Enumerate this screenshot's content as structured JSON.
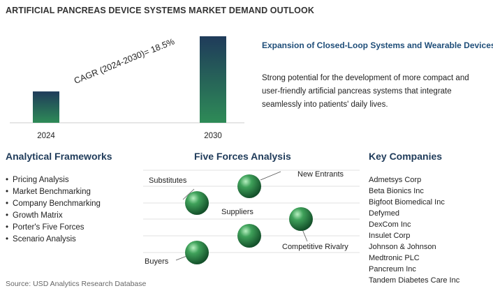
{
  "title": "ARTIFICIAL PANCREAS DEVICE SYSTEMS MARKET DEMAND OUTLOOK",
  "chart_data": {
    "type": "bar",
    "categories": [
      "2024",
      "2030"
    ],
    "values": [
      1,
      2.76
    ],
    "annotation": "CAGR (2024-2030)=  18.5%",
    "colors": {
      "bar_top": "#1f3b5a",
      "bar_bottom": "#2e8b57"
    }
  },
  "highlight": {
    "title": "Expansion of Closed-Loop Systems and Wearable Devices",
    "text": "Strong potential for the development of more compact and user-friendly artificial pancreas systems that integrate seamlessly into patients' daily lives."
  },
  "frameworks": {
    "title": "Analytical Frameworks",
    "items": [
      "Pricing Analysis",
      "Market Benchmarking",
      "Company Benchmarking",
      "Growth Matrix",
      "Porter's Five Forces",
      "Scenario Analysis"
    ]
  },
  "five_forces": {
    "title": "Five Forces Analysis",
    "labels": {
      "new_entrants": "New Entrants",
      "substitutes": "Substitutes",
      "suppliers": "Suppliers",
      "competitive_rivalry": "Competitive Rivalry",
      "buyers": "Buyers"
    }
  },
  "companies": {
    "title": "Key Companies",
    "items": [
      "Admetsys Corp",
      "Beta Bionics Inc",
      "Bigfoot Biomedical Inc",
      "Defymed",
      "DexCom Inc",
      "Insulet Corp",
      "Johnson & Johnson",
      "Medtronic PLC",
      "Pancreum Inc",
      "Tandem Diabetes Care Inc"
    ]
  },
  "source": "Source: USD Analytics Research Database",
  "colors": {
    "accent": "#1f4e79",
    "sphere": "#2e8b57"
  }
}
